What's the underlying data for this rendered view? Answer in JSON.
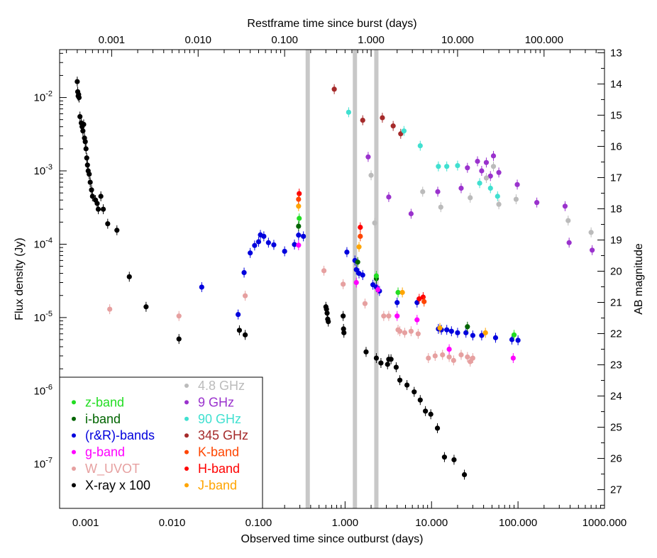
{
  "chart_data": {
    "type": "scatter",
    "title": "",
    "xlabel": "Observed time since outburst (days)",
    "x2label": "Restframe time since burst (days)",
    "ylabel": "Flux density (Jy)",
    "y2label": "AB magnitude",
    "x_scale": "log",
    "y_scale": "log",
    "xlim": [
      0.0005,
      1000
    ],
    "ylim": [
      2.5e-08,
      0.045
    ],
    "x2lim": [
      0.00025,
      500
    ],
    "y2lim": [
      27.6,
      12.9
    ],
    "x_ticks": [
      0.001,
      0.01,
      0.1,
      1,
      10,
      100,
      1000
    ],
    "x_tick_labels": [
      "0.001",
      "0.010",
      "0.100",
      "1.000",
      "10.000",
      "100.000",
      "1000.000"
    ],
    "x2_ticks": [
      0.001,
      0.01,
      0.1,
      1,
      10,
      100
    ],
    "x2_tick_labels": [
      "0.001",
      "0.010",
      "0.100",
      "1.000",
      "10.000",
      "100.000"
    ],
    "y_ticks": [
      1e-07,
      1e-06,
      1e-05,
      0.0001,
      0.001,
      0.01
    ],
    "y_tick_exponents": [
      "-7",
      "-6",
      "-5",
      "-4",
      "-3",
      "-2"
    ],
    "y_tick_base": "10",
    "y2_ticks": [
      13,
      14,
      15,
      16,
      17,
      18,
      19,
      20,
      21,
      22,
      23,
      24,
      25,
      26,
      27
    ],
    "y2_tick_labels": [
      "13",
      "14",
      "15",
      "16",
      "17",
      "18",
      "19",
      "20",
      "21",
      "22",
      "23",
      "24",
      "25",
      "26",
      "27"
    ],
    "vertical_bands": [
      0.37,
      1.3,
      2.3
    ],
    "legend_position": "lower-left",
    "legend": [
      {
        "name": "z-band",
        "color": "#22dd22",
        "column": 0
      },
      {
        "name": "i-band",
        "color": "#006400",
        "column": 0
      },
      {
        "name": "(r&R)-bands",
        "color": "#0000dd",
        "column": 0
      },
      {
        "name": "g-band",
        "color": "#ff00ff",
        "column": 0
      },
      {
        "name": "W_UVOT",
        "color": "#e6a0a0",
        "column": 0
      },
      {
        "name": "X-ray x 100",
        "color": "#000000",
        "column": 0
      },
      {
        "name": "4.8 GHz",
        "color": "#bbbbbb",
        "column": 1
      },
      {
        "name": "9 GHz",
        "color": "#9a32cd",
        "column": 1
      },
      {
        "name": "90 GHz",
        "color": "#40e0d0",
        "column": 1
      },
      {
        "name": "345 GHz",
        "color": "#a52a2a",
        "column": 1
      },
      {
        "name": "K-band",
        "color": "#ff4500",
        "column": 1
      },
      {
        "name": "H-band",
        "color": "#ff0000",
        "column": 1
      },
      {
        "name": "J-band",
        "color": "#ffa500",
        "column": 1
      }
    ],
    "series": [
      {
        "name": "X-ray x 100",
        "color": "#000000",
        "points": [
          [
            0.0008,
            0.0165
          ],
          [
            0.00081,
            0.012
          ],
          [
            0.00082,
            0.0105
          ],
          [
            0.00083,
            0.011
          ],
          [
            0.00084,
            0.01
          ],
          [
            0.00086,
            0.0055
          ],
          [
            0.00089,
            0.0045
          ],
          [
            0.00091,
            0.004
          ],
          [
            0.00093,
            0.0035
          ],
          [
            0.00095,
            0.0043
          ],
          [
            0.00097,
            0.0028
          ],
          [
            0.00099,
            0.0025
          ],
          [
            0.00101,
            0.002
          ],
          [
            0.00103,
            0.0015
          ],
          [
            0.00105,
            0.0012
          ],
          [
            0.00107,
            0.001
          ],
          [
            0.0011,
            0.0009
          ],
          [
            0.00113,
            0.0007
          ],
          [
            0.00117,
            0.00055
          ],
          [
            0.0012,
            0.00045
          ],
          [
            0.0013,
            0.0004
          ],
          [
            0.00136,
            0.00036
          ],
          [
            0.0014,
            0.0003
          ],
          [
            0.0015,
            0.00045
          ],
          [
            0.0016,
            0.0003
          ],
          [
            0.0018,
            0.00019
          ],
          [
            0.0023,
            0.000155
          ],
          [
            0.0032,
            3.6e-05
          ],
          [
            0.005,
            1.4e-05
          ],
          [
            0.012,
            5.1e-06
          ],
          [
            0.06,
            6.7e-06
          ],
          [
            0.07,
            5.8e-06
          ],
          [
            0.6,
            1.4e-05
          ],
          [
            0.61,
            1.3e-05
          ],
          [
            0.62,
            1.15e-05
          ],
          [
            0.63,
            9.5e-06
          ],
          [
            0.64,
            8.8e-06
          ],
          [
            0.95,
            1.05e-05
          ],
          [
            0.96,
            7e-06
          ],
          [
            0.97,
            6.2e-06
          ],
          [
            1.75,
            3.4e-06
          ],
          [
            2.3,
            2.8e-06
          ],
          [
            2.6,
            2.4e-06
          ],
          [
            3.1,
            2.3e-06
          ],
          [
            3.2,
            2.7e-06
          ],
          [
            3.4,
            2.7e-06
          ],
          [
            3.9,
            2.1e-06
          ],
          [
            4.3,
            1.4e-06
          ],
          [
            5.2,
            1.2e-06
          ],
          [
            6.3,
            9.7e-07
          ],
          [
            7.4,
            7.5e-07
          ],
          [
            8.5,
            5.3e-07
          ],
          [
            9.8,
            4.8e-07
          ],
          [
            11.7,
            3.1e-07
          ],
          [
            14.1,
            1.25e-07
          ],
          [
            18.2,
            1.15e-07
          ],
          [
            24.0,
            7.2e-08
          ]
        ]
      },
      {
        "name": "W_UVOT",
        "color": "#e6a0a0",
        "points": [
          [
            0.0019,
            1.3e-05
          ],
          [
            0.012,
            1.05e-05
          ],
          [
            0.07,
            1.98e-05
          ],
          [
            0.57,
            4.35e-05
          ],
          [
            0.95,
            2.85e-05
          ],
          [
            1.7,
            1.55e-05
          ],
          [
            2.8,
            1.05e-05
          ],
          [
            3.2,
            1.05e-05
          ],
          [
            4.1,
            6.8e-06
          ],
          [
            4.3,
            6.5e-06
          ],
          [
            4.9,
            6.2e-06
          ],
          [
            5.8,
            6.5e-06
          ],
          [
            7.0,
            6e-06
          ],
          [
            9.2,
            2.8e-06
          ],
          [
            11.0,
            3e-06
          ],
          [
            13.4,
            3.1e-06
          ],
          [
            16.0,
            2.9e-06
          ],
          [
            18.0,
            2.6e-06
          ],
          [
            22.0,
            3.1e-06
          ],
          [
            26.0,
            2.9e-06
          ],
          [
            28.0,
            2.5e-06
          ],
          [
            30.0,
            2.8e-06
          ]
        ]
      },
      {
        "name": "(r&R)-bands",
        "color": "#0000dd",
        "points": [
          [
            0.022,
            2.6e-05
          ],
          [
            0.058,
            1.1e-05
          ],
          [
            0.068,
            4.1e-05
          ],
          [
            0.08,
            7.6e-05
          ],
          [
            0.09,
            9.6e-05
          ],
          [
            0.1,
            0.000108
          ],
          [
            0.105,
            0.000134
          ],
          [
            0.115,
            0.000128
          ],
          [
            0.13,
            0.000105
          ],
          [
            0.15,
            9.8e-05
          ],
          [
            0.2,
            8e-05
          ],
          [
            0.26,
            9.9e-05
          ],
          [
            0.29,
            0.000133
          ],
          [
            0.33,
            0.000128
          ],
          [
            1.05,
            7.8e-05
          ],
          [
            1.3,
            6e-05
          ],
          [
            1.35,
            4.5e-05
          ],
          [
            1.45,
            4e-05
          ],
          [
            1.6,
            3.8e-05
          ],
          [
            2.1,
            2.8e-05
          ],
          [
            2.3,
            2.6e-05
          ],
          [
            2.5,
            2.3e-05
          ],
          [
            4.0,
            1.6e-05
          ],
          [
            6.8,
            1.6e-05
          ],
          [
            12.0,
            7e-06
          ],
          [
            13.0,
            6.8e-06
          ],
          [
            15.0,
            6.8e-06
          ],
          [
            17.0,
            6.5e-06
          ],
          [
            20.0,
            6.2e-06
          ],
          [
            25.0,
            6.2e-06
          ],
          [
            30.0,
            5.7e-06
          ],
          [
            38.0,
            5.7e-06
          ],
          [
            55.0,
            5.3e-06
          ],
          [
            85.0,
            5e-06
          ],
          [
            100.0,
            4.9e-06
          ]
        ]
      },
      {
        "name": "g-band",
        "color": "#ff00ff",
        "points": [
          [
            0.29,
            9.7e-05
          ],
          [
            1.35,
            3e-05
          ],
          [
            2.4,
            2.4e-05
          ],
          [
            4.0,
            1.05e-05
          ],
          [
            6.8,
            9.3e-06
          ],
          [
            16.0,
            3.7e-06
          ],
          [
            88.0,
            2.8e-06
          ]
        ]
      },
      {
        "name": "i-band",
        "color": "#006400",
        "points": [
          [
            0.29,
            0.000176
          ],
          [
            1.4,
            5.7e-05
          ],
          [
            2.3,
            3.4e-05
          ],
          [
            26.0,
            7.5e-06
          ]
        ]
      },
      {
        "name": "z-band",
        "color": "#22dd22",
        "points": [
          [
            0.295,
            0.000225
          ],
          [
            2.3,
            3.7e-05
          ],
          [
            4.1,
            2.2e-05
          ],
          [
            90.0,
            5.8e-06
          ]
        ]
      },
      {
        "name": "J-band",
        "color": "#ffa500",
        "points": [
          [
            0.29,
            0.00033
          ],
          [
            1.45,
            9.2e-05
          ],
          [
            4.6,
            2.2e-05
          ],
          [
            12.5,
            7.2e-06
          ],
          [
            42.0,
            6.2e-06
          ]
        ]
      },
      {
        "name": "H-band",
        "color": "#ff0000",
        "points": [
          [
            0.295,
            0.00049
          ],
          [
            1.5,
            0.00017
          ],
          [
            7.2,
            1.8e-05
          ],
          [
            8.0,
            1.9e-05
          ]
        ]
      },
      {
        "name": "K-band",
        "color": "#ff4500",
        "points": [
          [
            0.29,
            0.00041
          ],
          [
            1.5,
            0.000128
          ],
          [
            8.2,
            1.65e-05
          ]
        ]
      },
      {
        "name": "345 GHz",
        "color": "#a52a2a",
        "points": [
          [
            0.75,
            0.013
          ],
          [
            1.6,
            0.0049
          ],
          [
            2.7,
            0.0053
          ],
          [
            3.6,
            0.0041
          ],
          [
            4.4,
            0.0032
          ]
        ]
      },
      {
        "name": "90 GHz",
        "color": "#40e0d0",
        "points": [
          [
            1.1,
            0.0063
          ],
          [
            4.8,
            0.0035
          ],
          [
            7.4,
            0.0022
          ],
          [
            12.0,
            0.00115
          ],
          [
            15.0,
            0.00115
          ],
          [
            20.0,
            0.00118
          ],
          [
            36.0,
            0.00068
          ],
          [
            48.0,
            0.00058
          ],
          [
            58.0,
            0.00045
          ]
        ]
      },
      {
        "name": "9 GHz",
        "color": "#9a32cd",
        "points": [
          [
            1.85,
            0.00155
          ],
          [
            3.2,
            0.00044
          ],
          [
            5.8,
            0.00026
          ],
          [
            11.8,
            0.00052
          ],
          [
            22.0,
            0.00058
          ],
          [
            26.0,
            0.0011
          ],
          [
            34.0,
            0.00135
          ],
          [
            38.0,
            0.001
          ],
          [
            43.0,
            0.0013
          ],
          [
            48.0,
            0.00085
          ],
          [
            52.0,
            0.0016
          ],
          [
            60.0,
            0.00095
          ],
          [
            98.0,
            0.00065
          ],
          [
            165.0,
            0.00037
          ],
          [
            350.0,
            0.00033
          ],
          [
            390.0,
            0.000105
          ],
          [
            720.0,
            8.3e-05
          ]
        ]
      },
      {
        "name": "4.8 GHz",
        "color": "#bbbbbb",
        "points": [
          [
            2.0,
            0.00087
          ],
          [
            2.2,
            0.000195
          ],
          [
            7.9,
            0.00052
          ],
          [
            12.8,
            0.00032
          ],
          [
            28.0,
            0.00043
          ],
          [
            43.0,
            0.0008
          ],
          [
            52.0,
            0.00115
          ],
          [
            60.0,
            0.00035
          ],
          [
            95.0,
            0.00041
          ],
          [
            380.0,
            0.00021
          ],
          [
            700.0,
            0.000145
          ]
        ]
      }
    ]
  }
}
